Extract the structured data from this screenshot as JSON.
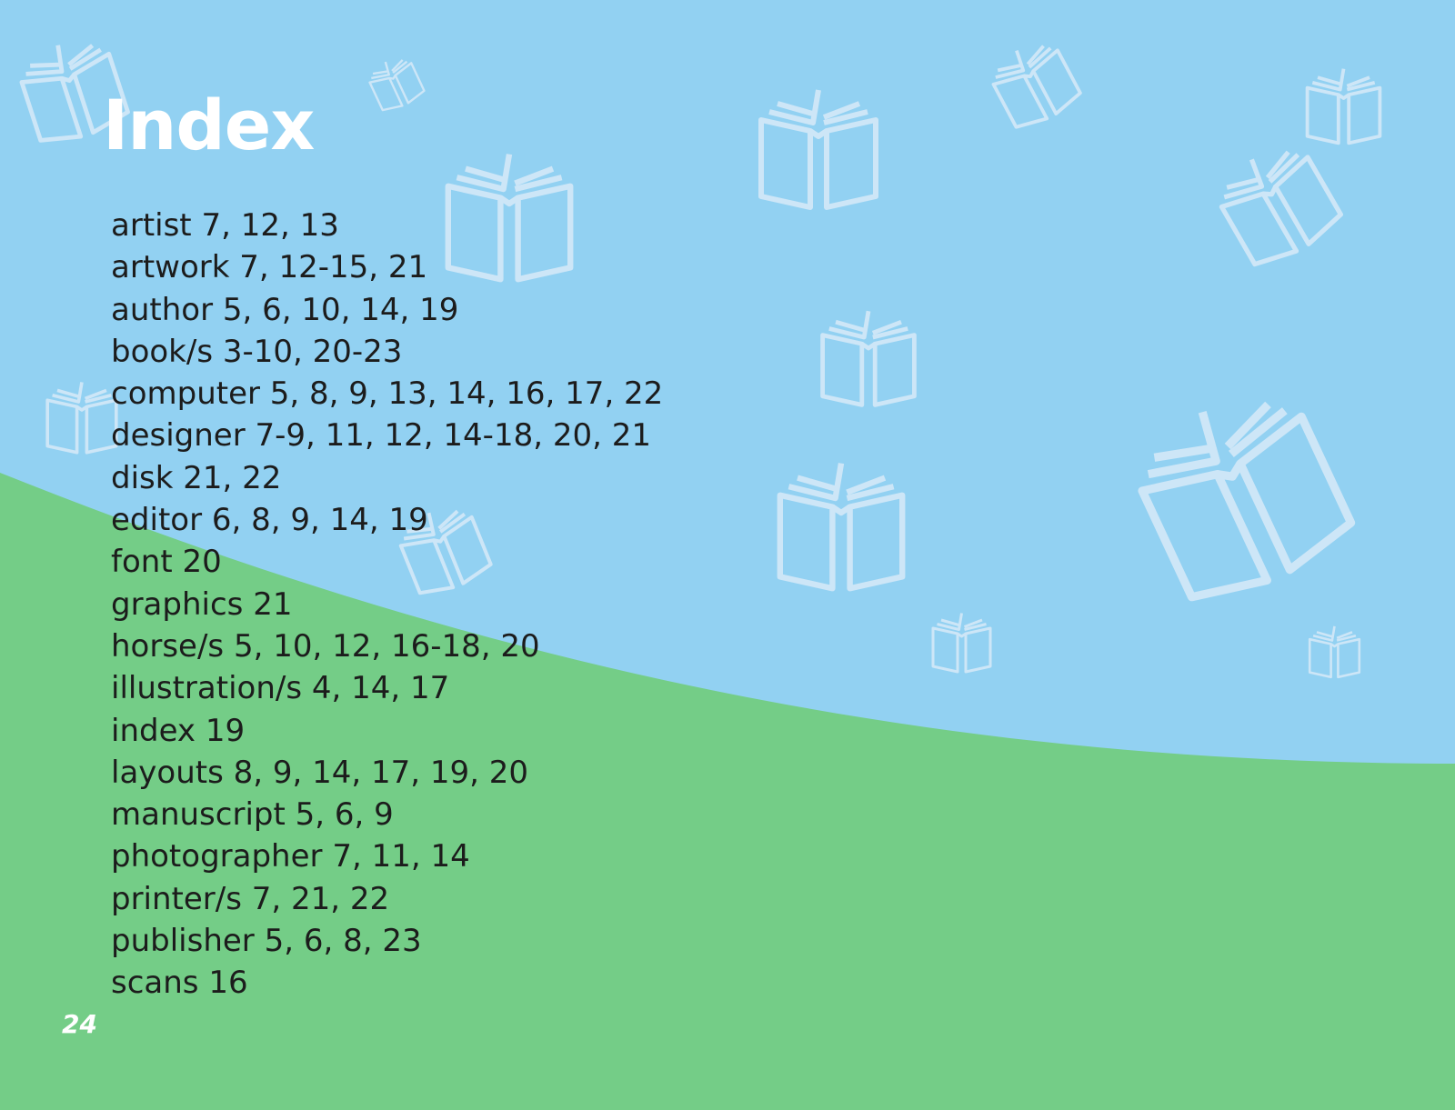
{
  "page": {
    "title": "Index",
    "page_number": "24"
  },
  "colors": {
    "sky_blue": "#92d1f2",
    "grass_green": "#74cd87",
    "icon_outline": "#cde6f7",
    "title_text": "#ffffff",
    "entry_text": "#1c1c1c",
    "page_number_text": "#ffffff"
  },
  "background_icons": "open-book-icon",
  "entries": [
    {
      "term": "artist",
      "pages": "7, 12, 13"
    },
    {
      "term": "artwork",
      "pages": "7, 12-15, 21"
    },
    {
      "term": "author",
      "pages": "5, 6, 10, 14, 19"
    },
    {
      "term": "book/s",
      "pages": "3-10, 20-23"
    },
    {
      "term": "computer",
      "pages": "5, 8, 9, 13, 14, 16, 17, 22"
    },
    {
      "term": "designer",
      "pages": "7-9, 11, 12, 14-18, 20, 21"
    },
    {
      "term": "disk",
      "pages": "21, 22"
    },
    {
      "term": "editor",
      "pages": "6, 8, 9, 14, 19"
    },
    {
      "term": "font",
      "pages": "20"
    },
    {
      "term": "graphics",
      "pages": "21"
    },
    {
      "term": "horse/s",
      "pages": "5, 10, 12, 16-18, 20"
    },
    {
      "term": "illustration/s",
      "pages": "4, 14, 17"
    },
    {
      "term": "index",
      "pages": "19"
    },
    {
      "term": "layouts",
      "pages": "8, 9, 14, 17, 19, 20"
    },
    {
      "term": "manuscript",
      "pages": "5, 6, 9"
    },
    {
      "term": "photographer",
      "pages": "7, 11, 14"
    },
    {
      "term": "printer/s",
      "pages": "7, 21, 22"
    },
    {
      "term": "publisher",
      "pages": "5, 6, 8, 23"
    },
    {
      "term": "scans",
      "pages": "16"
    }
  ]
}
